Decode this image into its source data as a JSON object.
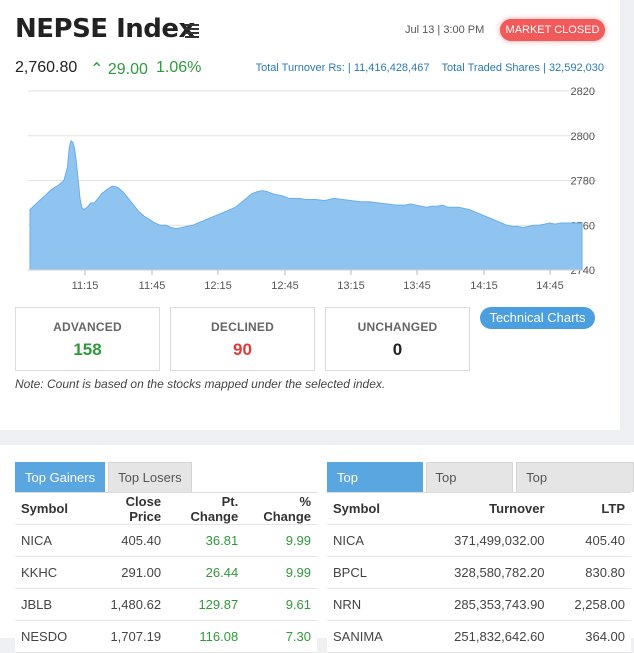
{
  "header": {
    "title": "NEPSE Index",
    "datetime": "Jul 13 | 3:00 PM",
    "market_status": "MARKET CLOSED",
    "index_value": "2,760.80",
    "change": "29.00",
    "change_pct": "1.06%",
    "turnover_label": "Total Turnover Rs:",
    "turnover_value": "11,416,428,467",
    "shares_label": "Total Traded Shares",
    "shares_value": "32,592,030"
  },
  "colors": {
    "up": "#2e9a3b",
    "down": "#e03b3b",
    "accent": "#4a9fe0",
    "area": "#90c4f0"
  },
  "chart_data": {
    "type": "area",
    "x_ticks": [
      "11:15",
      "11:45",
      "12:15",
      "12:45",
      "13:15",
      "13:45",
      "14:15",
      "14:45"
    ],
    "y_ticks": [
      2820,
      2800,
      2780,
      2760,
      2740
    ],
    "ylim": [
      2740,
      2820
    ],
    "grid": true,
    "series": [
      {
        "values": [
          [
            0,
            2767
          ],
          [
            4,
            2770
          ],
          [
            8,
            2773
          ],
          [
            12,
            2776
          ],
          [
            16,
            2778
          ],
          [
            19,
            2780
          ],
          [
            21,
            2786
          ],
          [
            22,
            2795
          ],
          [
            23,
            2797.8
          ],
          [
            24,
            2797
          ],
          [
            25,
            2794
          ],
          [
            26,
            2788
          ],
          [
            27,
            2780
          ],
          [
            28,
            2772
          ],
          [
            29,
            2768
          ],
          [
            30,
            2767
          ],
          [
            32,
            2768
          ],
          [
            34,
            2770
          ],
          [
            36,
            2770
          ],
          [
            38,
            2772
          ],
          [
            40,
            2774
          ],
          [
            43,
            2776
          ],
          [
            46,
            2777.5
          ],
          [
            49,
            2777
          ],
          [
            52,
            2775
          ],
          [
            55,
            2772
          ],
          [
            58,
            2769
          ],
          [
            61,
            2766
          ],
          [
            64,
            2764
          ],
          [
            67,
            2762.5
          ],
          [
            70,
            2761
          ],
          [
            73,
            2760
          ],
          [
            76,
            2760
          ],
          [
            79,
            2759
          ],
          [
            82,
            2758.5
          ],
          [
            85,
            2759
          ],
          [
            88,
            2759.5
          ],
          [
            91,
            2760
          ],
          [
            94,
            2761
          ],
          [
            97,
            2762
          ],
          [
            100,
            2763
          ],
          [
            103,
            2764
          ],
          [
            106,
            2765
          ],
          [
            109,
            2766
          ],
          [
            112,
            2767
          ],
          [
            115,
            2768
          ],
          [
            118,
            2770
          ],
          [
            121,
            2772
          ],
          [
            124,
            2774
          ],
          [
            127,
            2775
          ],
          [
            130,
            2775.5
          ],
          [
            133,
            2775
          ],
          [
            136,
            2774
          ],
          [
            139,
            2773.5
          ],
          [
            142,
            2773
          ],
          [
            145,
            2772
          ],
          [
            150,
            2772
          ],
          [
            155,
            2771.5
          ],
          [
            160,
            2771.5
          ],
          [
            165,
            2771
          ],
          [
            170,
            2772
          ],
          [
            175,
            2771.5
          ],
          [
            180,
            2771
          ],
          [
            185,
            2770.5
          ],
          [
            190,
            2770.5
          ],
          [
            195,
            2770
          ],
          [
            200,
            2769.5
          ],
          [
            205,
            2769
          ],
          [
            210,
            2769
          ],
          [
            213,
            2769.5
          ],
          [
            216,
            2769
          ],
          [
            219,
            2768.5
          ],
          [
            222,
            2768
          ],
          [
            225,
            2768.5
          ],
          [
            228,
            2768.5
          ],
          [
            231,
            2769
          ],
          [
            234,
            2768
          ],
          [
            237,
            2768
          ],
          [
            240,
            2768
          ],
          [
            243,
            2767.5
          ],
          [
            246,
            2767
          ],
          [
            249,
            2766
          ],
          [
            252,
            2765
          ],
          [
            255,
            2764
          ],
          [
            258,
            2763
          ],
          [
            261,
            2762
          ],
          [
            264,
            2761
          ],
          [
            267,
            2760
          ],
          [
            270,
            2759.5
          ],
          [
            273,
            2759.5
          ],
          [
            276,
            2759
          ],
          [
            279,
            2759.5
          ],
          [
            282,
            2760
          ],
          [
            285,
            2760
          ],
          [
            288,
            2760.5
          ],
          [
            291,
            2761
          ],
          [
            294,
            2760.5
          ],
          [
            297,
            2761
          ],
          [
            300,
            2761
          ],
          [
            303,
            2761
          ],
          [
            306,
            2761
          ],
          [
            309,
            2761
          ]
        ]
      }
    ]
  },
  "summary": {
    "advanced_label": "ADVANCED",
    "advanced_value": "158",
    "declined_label": "DECLINED",
    "declined_value": "90",
    "unchanged_label": "UNCHANGED",
    "unchanged_value": "0"
  },
  "tech_charts_label": "Technical Charts",
  "note": "Note: Count is based on the stocks mapped under the selected index.",
  "gainers_tabs": [
    "Top Gainers",
    "Top Losers"
  ],
  "gainers_headers": [
    "Symbol",
    "Close Price",
    "Pt. Change",
    "% Change"
  ],
  "gainers_rows": [
    [
      "NICA",
      "405.40",
      "36.81",
      "9.99"
    ],
    [
      "KKHC",
      "291.00",
      "26.44",
      "9.99"
    ],
    [
      "JBLB",
      "1,480.62",
      "129.87",
      "9.61"
    ],
    [
      "NESDO",
      "1,707.19",
      "116.08",
      "7.30"
    ]
  ],
  "turnover_tabs": [
    "Top Turnover",
    "Top Volume",
    "Top Transactions"
  ],
  "turnover_headers": [
    "Symbol",
    "Turnover",
    "LTP"
  ],
  "turnover_rows": [
    [
      "NICA",
      "371,499,032.00",
      "405.40"
    ],
    [
      "BPCL",
      "328,580,782.20",
      "830.80"
    ],
    [
      "NRN",
      "285,353,743.90",
      "2,258.00"
    ],
    [
      "SANIMA",
      "251,832,642.60",
      "364.00"
    ]
  ]
}
